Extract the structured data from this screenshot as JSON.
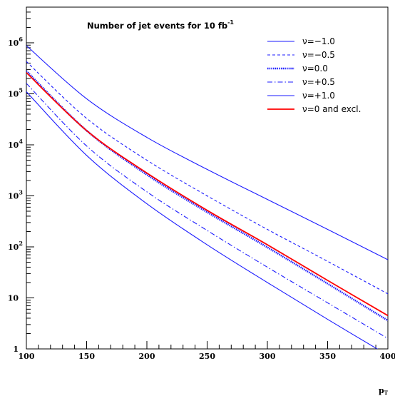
{
  "chart_data": {
    "type": "line",
    "title": "Number of jet events for 10 fb",
    "title_superscript": "-1",
    "xlabel": "p",
    "xlabel_subscript": "T",
    "ylabel": "",
    "xlim": [
      100,
      400
    ],
    "ylim": [
      1,
      5000000
    ],
    "yscale": "log",
    "grid": false,
    "legend_position": "top-right",
    "x_tick_labels": [
      "100",
      "150",
      "200",
      "250",
      "300",
      "350",
      "400"
    ],
    "y_tick_labels": [
      {
        "value": 1,
        "base": "1",
        "exp": ""
      },
      {
        "value": 10,
        "base": "10",
        "exp": ""
      },
      {
        "value": 100,
        "base": "10",
        "exp": "2"
      },
      {
        "value": 1000,
        "base": "10",
        "exp": "3"
      },
      {
        "value": 10000,
        "base": "10",
        "exp": "4"
      },
      {
        "value": 100000,
        "base": "10",
        "exp": "5"
      },
      {
        "value": 1000000,
        "base": "10",
        "exp": "6"
      }
    ],
    "x": [
      100,
      150,
      200,
      250,
      300,
      350,
      400
    ],
    "series": [
      {
        "name": "ν=−1.0",
        "style": "solid",
        "color": "#1a1aff",
        "values": [
          880000,
          80000,
          14000,
          3300,
          850,
          220,
          56
        ]
      },
      {
        "name": "ν=−0.5",
        "style": "dashed",
        "color": "#1a1aff",
        "values": [
          430000,
          33000,
          5000,
          1000,
          220,
          52,
          12
        ]
      },
      {
        "name": "ν=0.0",
        "style": "dotted",
        "color": "#1a1aff",
        "values": [
          280000,
          19000,
          2600,
          480,
          98,
          19,
          3.6
        ]
      },
      {
        "name": "ν=+0.5",
        "style": "dashdot",
        "color": "#1a1aff",
        "values": [
          160000,
          9500,
          1200,
          210,
          40,
          8,
          1.6
        ]
      },
      {
        "name": "ν=+1.0",
        "style": "solid",
        "color": "#1a1aff",
        "values": [
          110000,
          6200,
          700,
          110,
          20,
          3.8,
          0.75
        ]
      },
      {
        "name": "ν=0 and excl.",
        "style": "solid",
        "color": "#ff0000",
        "values": [
          260000,
          19000,
          2800,
          520,
          110,
          22,
          4.5
        ]
      }
    ]
  }
}
